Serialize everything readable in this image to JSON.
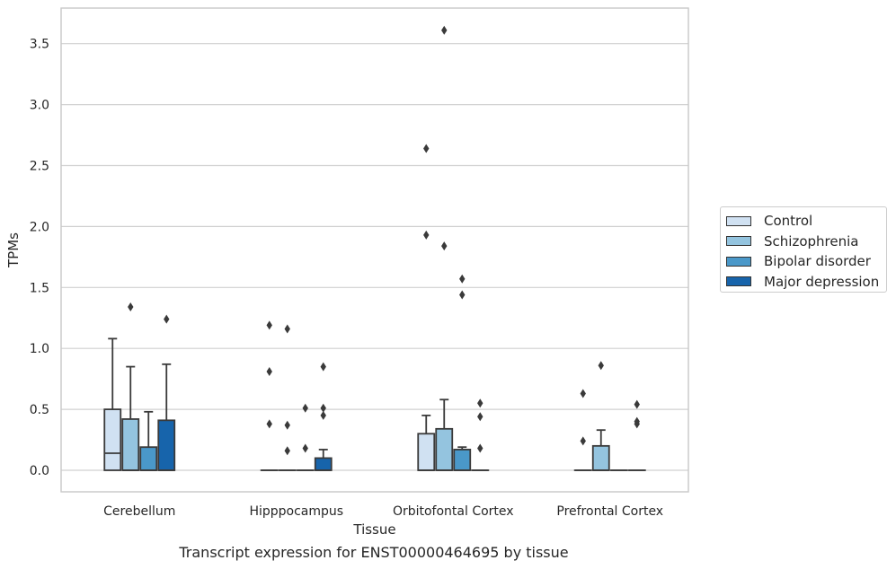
{
  "chart_data": {
    "type": "box",
    "xlabel": "Tissue",
    "ylabel": "TPMs",
    "ylim": [
      -0.17,
      3.78
    ],
    "yticks": [
      "0.0",
      "0.5",
      "1.0",
      "1.5",
      "2.0",
      "2.5",
      "3.0",
      "3.5"
    ],
    "ytick_values": [
      0,
      0.5,
      1.0,
      1.5,
      2.0,
      2.5,
      3.0,
      3.5
    ],
    "grid": true,
    "legend_position": "right",
    "categories": [
      "Cerebellum",
      "Hipppocampus",
      "Orbitofontal Cortex",
      "Prefrontal Cortex"
    ],
    "series": [
      {
        "name": "Control",
        "color": "#d0e1f2",
        "boxes": [
          {
            "q1": 0,
            "median": 0.14,
            "q3": 0.5,
            "whislo": 0,
            "whishi": 1.08,
            "fliers": []
          },
          {
            "q1": 0,
            "median": 0,
            "q3": 0,
            "whislo": 0,
            "whishi": 0,
            "fliers": [
              1.19,
              0.81,
              0.38
            ]
          },
          {
            "q1": 0,
            "median": 0,
            "q3": 0.3,
            "whislo": 0,
            "whishi": 0.45,
            "fliers": [
              2.64,
              1.93
            ]
          },
          {
            "q1": 0,
            "median": 0,
            "q3": 0,
            "whislo": 0,
            "whishi": 0,
            "fliers": [
              0.63,
              0.24
            ]
          }
        ]
      },
      {
        "name": "Schizophrenia",
        "color": "#94c4df",
        "boxes": [
          {
            "q1": 0,
            "median": 0,
            "q3": 0.42,
            "whislo": 0,
            "whishi": 0.85,
            "fliers": [
              1.34
            ]
          },
          {
            "q1": 0,
            "median": 0,
            "q3": 0,
            "whislo": 0,
            "whishi": 0,
            "fliers": [
              1.16,
              0.37,
              0.16
            ]
          },
          {
            "q1": 0,
            "median": 0,
            "q3": 0.34,
            "whislo": 0,
            "whishi": 0.58,
            "fliers": [
              3.61,
              1.84
            ]
          },
          {
            "q1": 0,
            "median": 0,
            "q3": 0.2,
            "whislo": 0,
            "whishi": 0.33,
            "fliers": [
              0.86
            ]
          }
        ]
      },
      {
        "name": "Bipolar disorder",
        "color": "#4a98c9",
        "boxes": [
          {
            "q1": 0,
            "median": 0,
            "q3": 0.19,
            "whislo": 0,
            "whishi": 0.48,
            "fliers": []
          },
          {
            "q1": 0,
            "median": 0,
            "q3": 0,
            "whislo": 0,
            "whishi": 0,
            "fliers": [
              0.51,
              0.18
            ]
          },
          {
            "q1": 0,
            "median": 0,
            "q3": 0.17,
            "whislo": 0,
            "whishi": 0.19,
            "fliers": [
              1.57,
              1.44
            ]
          },
          {
            "q1": 0,
            "median": 0,
            "q3": 0,
            "whislo": 0,
            "whishi": 0,
            "fliers": []
          }
        ]
      },
      {
        "name": "Major depression",
        "color": "#1764ab",
        "boxes": [
          {
            "q1": 0,
            "median": 0,
            "q3": 0.41,
            "whislo": 0,
            "whishi": 0.87,
            "fliers": [
              1.24
            ]
          },
          {
            "q1": 0,
            "median": 0,
            "q3": 0.1,
            "whislo": 0,
            "whishi": 0.17,
            "fliers": [
              0.85,
              0.51,
              0.45
            ]
          },
          {
            "q1": 0,
            "median": 0,
            "q3": 0,
            "whislo": 0,
            "whishi": 0,
            "fliers": [
              0.55,
              0.44,
              0.18
            ]
          },
          {
            "q1": 0,
            "median": 0,
            "q3": 0,
            "whislo": 0,
            "whishi": 0,
            "fliers": [
              0.54,
              0.4,
              0.38
            ]
          }
        ]
      }
    ]
  },
  "caption": "Transcript expression for ENST00000464695 by tissue"
}
